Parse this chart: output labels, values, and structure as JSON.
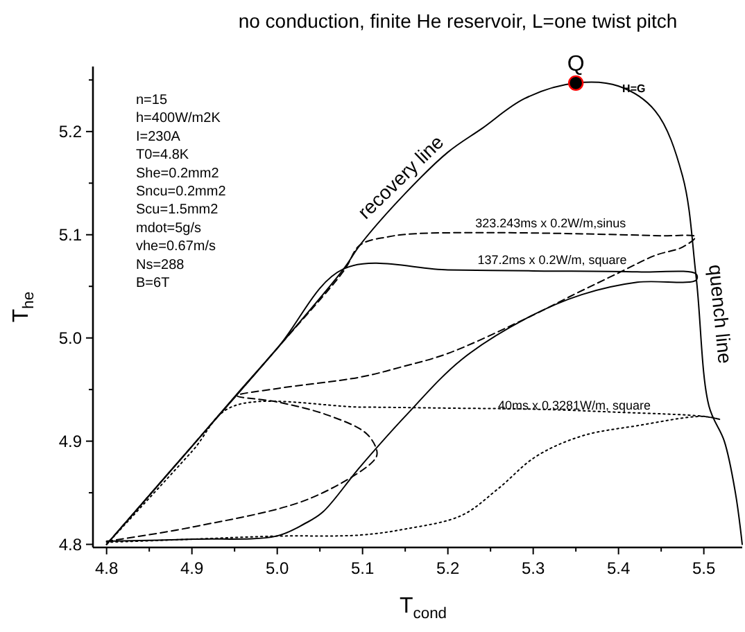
{
  "chart_data": {
    "type": "line",
    "title": "no conduction, finite He reservoir, L=one twist pitch",
    "xlabel": "T$_{cond}$",
    "ylabel": "T$_{he}$",
    "xlim": [
      4.784,
      5.545
    ],
    "ylim": [
      4.797,
      5.263
    ],
    "xticks": [
      4.8,
      {
        "value": 4.85,
        "label": null
      },
      4.9,
      {
        "value": 4.95,
        "label": null
      },
      {
        "value": 5.0,
        "label": "5.0"
      },
      {
        "value": 5.05,
        "label": null
      },
      5.1,
      {
        "value": 5.15,
        "label": null
      },
      5.2,
      {
        "value": 5.25,
        "label": null
      },
      5.3,
      {
        "value": 5.35,
        "label": null
      },
      5.4,
      {
        "value": 5.45,
        "label": null
      },
      5.5
    ],
    "yticks": [
      4.8,
      {
        "value": 4.85,
        "label": null
      },
      4.9,
      {
        "value": 4.95,
        "label": null
      },
      {
        "value": 5.0,
        "label": "5.0"
      },
      {
        "value": 5.05,
        "label": null
      },
      5.1,
      {
        "value": 5.15,
        "label": null
      },
      5.2,
      {
        "value": 5.25,
        "label": null
      }
    ],
    "grid": false,
    "legend": false,
    "series": [
      {
        "color": "#000000",
        "line_style": "solid",
        "marker": "none",
        "x": [
          4.8,
          4.9,
          4.951,
          5.0,
          5.078,
          5.097,
          5.15,
          5.2,
          5.24,
          5.29,
          5.35,
          5.4,
          5.443,
          5.475,
          5.491,
          5.506,
          5.524,
          5.537,
          5.545
        ],
        "values": [
          4.8,
          4.895,
          4.944,
          4.99,
          5.067,
          5.09,
          5.14,
          5.18,
          5.203,
          5.232,
          5.247,
          5.244,
          5.22,
          5.157,
          5.059,
          4.934,
          4.9,
          4.85,
          4.8
        ]
      },
      {
        "name": "323.243ms x 0.2W/m,sinus",
        "color": "#000000",
        "line_style": "dashed",
        "marker": "none",
        "x": [
          4.8,
          4.9,
          5.0,
          5.078,
          5.097,
          5.13,
          5.162,
          5.25,
          5.35,
          5.45,
          5.49,
          5.475,
          5.443,
          5.4,
          5.35,
          5.292,
          5.2,
          5.146,
          5.097,
          5.0,
          4.953,
          5.0,
          5.06,
          5.105,
          5.117,
          5.113,
          5.037,
          4.902,
          4.8
        ],
        "values": [
          4.8,
          4.895,
          4.99,
          5.065,
          5.09,
          5.098,
          5.101,
          5.102,
          5.101,
          5.099,
          5.098,
          5.088,
          5.08,
          5.063,
          5.043,
          5.019,
          4.985,
          4.972,
          4.962,
          4.951,
          4.944,
          4.938,
          4.925,
          4.907,
          4.889,
          4.881,
          4.844,
          4.817,
          4.803
        ]
      },
      {
        "name": "137.2ms x 0.2W/m, square",
        "color": "#000000",
        "line_style": "solid",
        "marker": "none",
        "x": [
          4.8,
          4.9,
          5.0,
          5.078,
          5.2,
          5.3,
          5.422,
          5.491,
          5.491,
          5.422,
          5.357,
          5.292,
          5.216,
          5.151,
          5.097,
          5.053,
          5.032,
          4.999,
          4.902,
          4.8
        ],
        "values": [
          4.8,
          4.895,
          4.99,
          5.067,
          5.066,
          5.065,
          5.064,
          5.062,
          5.056,
          5.054,
          5.042,
          5.019,
          4.979,
          4.925,
          4.875,
          4.831,
          4.82,
          4.808,
          4.805,
          4.803
        ]
      },
      {
        "name": "40ms x 0.3281W/m, square",
        "color": "#000000",
        "line_style": "dotted",
        "marker": "none",
        "x": [
          4.8,
          4.9,
          4.946,
          5.1,
          5.2,
          5.3,
          5.4,
          5.5,
          5.519,
          5.498,
          5.422,
          5.357,
          5.303,
          5.259,
          5.216,
          5.151,
          5.097,
          4.999,
          4.9,
          4.8
        ],
        "values": [
          4.8,
          4.89,
          4.933,
          4.933,
          4.932,
          4.931,
          4.928,
          4.924,
          4.921,
          4.924,
          4.915,
          4.905,
          4.885,
          4.854,
          4.828,
          4.815,
          4.809,
          4.808,
          4.805,
          4.802
        ]
      },
      {
        "type": "scatter",
        "name": "Q",
        "color": "#000000",
        "marker": "circle",
        "x": [
          5.35
        ],
        "values": [
          5.247
        ]
      }
    ],
    "annotations": [
      "n=15\nh=400W/m2K\nI=230A\nT0=4.8K\nShe=0.2mm2\nSncu=0.2mm2\nScu=1.5mm2\nmdot=5g/s\nvhe=0.67m/s\nNs=288\nB=6T",
      "recovery line",
      "quench line",
      {
        "text": "H=G",
        "x": 5.418,
        "y": 5.238
      }
    ]
  }
}
